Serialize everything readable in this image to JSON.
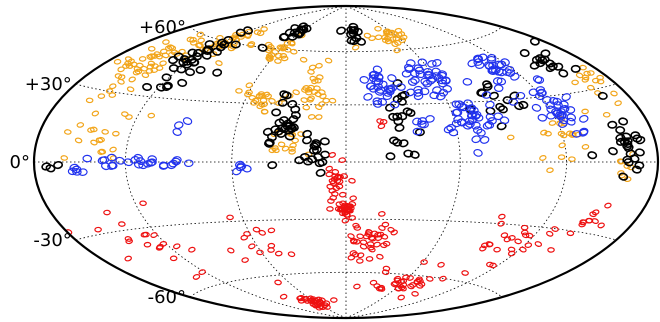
{
  "chart_data": {
    "type": "scatter",
    "projection": "hammer-aitoff",
    "title": "",
    "xlabel": "",
    "ylabel": "",
    "lon_range": [
      -180,
      180
    ],
    "lat_range": [
      -90,
      90
    ],
    "lat_ticks": [
      60,
      30,
      0,
      -30,
      -60
    ],
    "lat_tick_labels": [
      "+60°",
      "+30°",
      "0°",
      "-30°",
      "-60°"
    ],
    "lon_grid": [
      -120,
      -60,
      0,
      60,
      120
    ],
    "grid": true,
    "colors": {
      "black": "#000000",
      "orange": "#f2a51a",
      "blue": "#2233ee",
      "red": "#ee1111"
    },
    "series": [
      {
        "color_key": "orange",
        "clusters": [
          {
            "lon": -150,
            "lat": 45,
            "spread": [
              18,
              12
            ],
            "count": 55
          },
          {
            "lon": -115,
            "lat": 60,
            "spread": [
              15,
              8
            ],
            "count": 35
          },
          {
            "lon": -140,
            "lat": 10,
            "spread": [
              20,
              10
            ],
            "count": 20
          },
          {
            "lon": -60,
            "lat": 60,
            "spread": [
              15,
              8
            ],
            "count": 25
          },
          {
            "lon": -50,
            "lat": 32,
            "spread": [
              8,
              6
            ],
            "count": 22
          },
          {
            "lon": -20,
            "lat": 38,
            "spread": [
              10,
              10
            ],
            "count": 30
          },
          {
            "lon": -30,
            "lat": 10,
            "spread": [
              10,
              8
            ],
            "count": 15
          },
          {
            "lon": 50,
            "lat": 68,
            "spread": [
              20,
              6
            ],
            "count": 25
          },
          {
            "lon": 115,
            "lat": 12,
            "spread": [
              20,
              10
            ],
            "count": 20
          },
          {
            "lon": 160,
            "lat": 30,
            "spread": [
              10,
              15
            ],
            "count": 15
          },
          {
            "lon": 160,
            "lat": -5,
            "spread": [
              8,
              8
            ],
            "count": 8
          }
        ]
      },
      {
        "color_key": "black",
        "clusters": [
          {
            "lon": -120,
            "lat": 48,
            "spread": [
              15,
              15
            ],
            "count": 35
          },
          {
            "lon": -70,
            "lat": 70,
            "spread": [
              12,
              6
            ],
            "count": 15
          },
          {
            "lon": -35,
            "lat": 20,
            "spread": [
              10,
              12
            ],
            "count": 30
          },
          {
            "lon": -15,
            "lat": 5,
            "spread": [
              5,
              8
            ],
            "count": 15
          },
          {
            "lon": 10,
            "lat": 70,
            "spread": [
              10,
              5
            ],
            "count": 12
          },
          {
            "lon": 30,
            "lat": 20,
            "spread": [
              10,
              15
            ],
            "count": 20
          },
          {
            "lon": 90,
            "lat": 30,
            "spread": [
              15,
              10
            ],
            "count": 15
          },
          {
            "lon": 160,
            "lat": 8,
            "spread": [
              10,
              10
            ],
            "count": 25
          },
          {
            "lon": 150,
            "lat": 45,
            "spread": [
              15,
              10
            ],
            "count": 15
          },
          {
            "lon": -170,
            "lat": -2,
            "spread": [
              5,
              3
            ],
            "count": 3
          }
        ]
      },
      {
        "color_key": "blue",
        "clusters": [
          {
            "lon": 20,
            "lat": 40,
            "spread": [
              12,
              8
            ],
            "count": 30
          },
          {
            "lon": 55,
            "lat": 42,
            "spread": [
              15,
              10
            ],
            "count": 40
          },
          {
            "lon": 70,
            "lat": 22,
            "spread": [
              15,
              10
            ],
            "count": 40
          },
          {
            "lon": 110,
            "lat": 45,
            "spread": [
              15,
              8
            ],
            "count": 35
          },
          {
            "lon": 125,
            "lat": 22,
            "spread": [
              12,
              8
            ],
            "count": 30
          },
          {
            "lon": 40,
            "lat": 20,
            "spread": [
              6,
              4
            ],
            "count": 6
          },
          {
            "lon": -110,
            "lat": 0,
            "spread": [
              25,
              2
            ],
            "count": 25
          },
          {
            "lon": -150,
            "lat": -4,
            "spread": [
              4,
              2
            ],
            "count": 5
          },
          {
            "lon": -55,
            "lat": -3,
            "spread": [
              6,
              2
            ],
            "count": 5
          },
          {
            "lon": -95,
            "lat": 18,
            "spread": [
              5,
              3
            ],
            "count": 3
          }
        ]
      },
      {
        "color_key": "red",
        "clusters": [
          {
            "lon": 0,
            "lat": -25,
            "spread": [
              4,
              3
            ],
            "count": 30
          },
          {
            "lon": -5,
            "lat": -10,
            "spread": [
              6,
              10
            ],
            "count": 25
          },
          {
            "lon": 15,
            "lat": -40,
            "spread": [
              12,
              10
            ],
            "count": 40
          },
          {
            "lon": 60,
            "lat": -65,
            "spread": [
              25,
              8
            ],
            "count": 35
          },
          {
            "lon": 110,
            "lat": -40,
            "spread": [
              20,
              10
            ],
            "count": 25
          },
          {
            "lon": -60,
            "lat": -78,
            "spread": [
              25,
              4
            ],
            "count": 30
          },
          {
            "lon": -130,
            "lat": -35,
            "spread": [
              25,
              15
            ],
            "count": 20
          },
          {
            "lon": -60,
            "lat": -45,
            "spread": [
              20,
              15
            ],
            "count": 15
          },
          {
            "lon": 150,
            "lat": -25,
            "spread": [
              10,
              8
            ],
            "count": 12
          },
          {
            "lon": 20,
            "lat": 20,
            "spread": [
              3,
              2
            ],
            "count": 3
          }
        ]
      }
    ]
  }
}
